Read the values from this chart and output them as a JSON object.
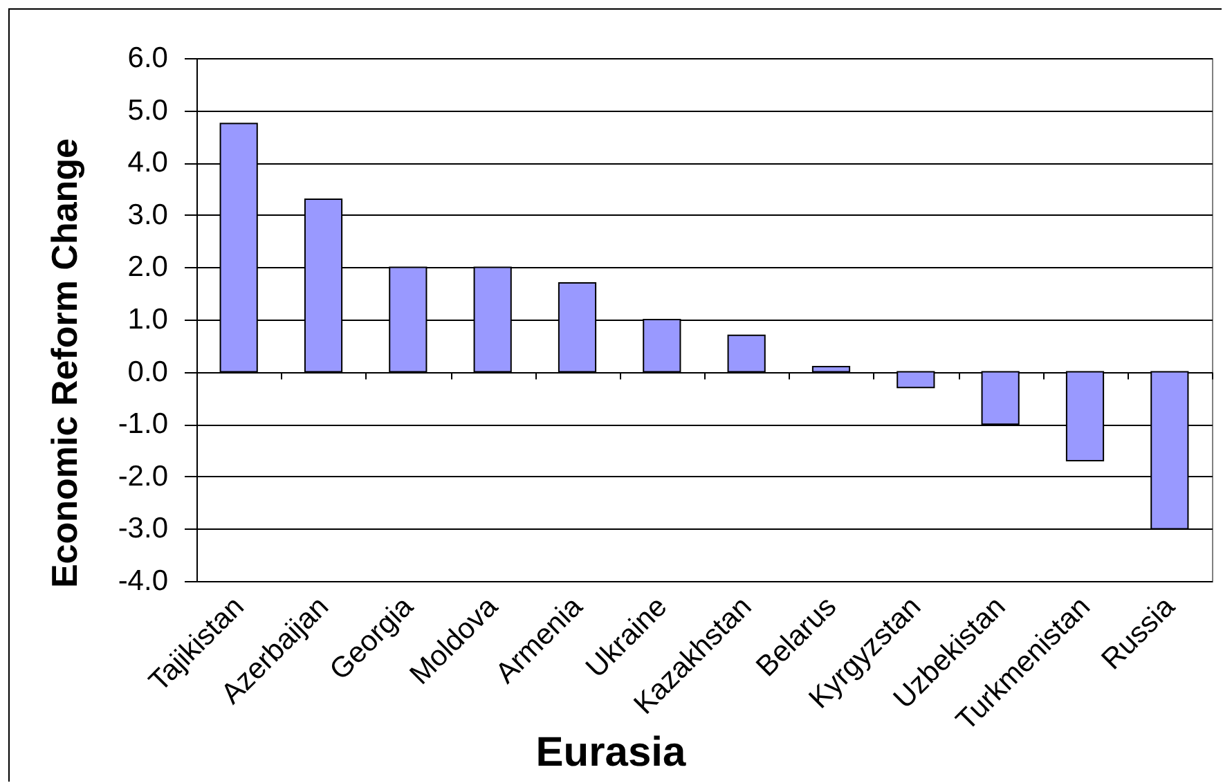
{
  "chart_data": {
    "type": "bar",
    "xlabel": "Eurasia",
    "ylabel": "Economic Reform Change",
    "categories": [
      "Tajikistan",
      "Azerbaijan",
      "Georgia",
      "Moldova",
      "Armenia",
      "Ukraine",
      "Kazakhstan",
      "Belarus",
      "Kyrgyzstan",
      "Uzbekistan",
      "Turkmenistan",
      "Russia"
    ],
    "values": [
      4.75,
      3.3,
      2.0,
      2.0,
      1.7,
      1.0,
      0.7,
      0.1,
      -0.3,
      -1.0,
      -1.7,
      -3.0
    ],
    "color": "#9999ff",
    "ylim": [
      -4,
      6
    ],
    "yticks": [
      {
        "value": -4,
        "label": "-4.0"
      },
      {
        "value": -3,
        "label": "-3.0"
      },
      {
        "value": -2,
        "label": "-2.0"
      },
      {
        "value": -1,
        "label": "-1.0"
      },
      {
        "value": 0,
        "label": "0.0"
      },
      {
        "value": 1,
        "label": "1.0"
      },
      {
        "value": 2,
        "label": "2.0"
      },
      {
        "value": 3,
        "label": "3.0"
      },
      {
        "value": 4,
        "label": "4.0"
      },
      {
        "value": 5,
        "label": "5.0"
      },
      {
        "value": 6,
        "label": "6.0"
      }
    ],
    "grid": "y"
  }
}
